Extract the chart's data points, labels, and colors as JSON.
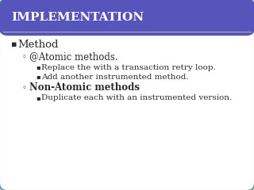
{
  "title": "IMPLEMENTATION",
  "title_bg_color": "#5555bb",
  "title_text_color": "#ffffff",
  "slide_bg_color": "#e8e8e8",
  "content_bg_color": "#ffffff",
  "border_color": "#5599aa",
  "bullet1": "Method",
  "sub1": "@Atomic methods.",
  "sub1a": "Replace the with a transaction retry loop.",
  "sub1b": "Add another instrumented method.",
  "sub2": "Non-Atomic methods",
  "sub2a": "Duplicate each with an instrumented version.",
  "text_color": "#2a2a2a",
  "font_family": "DejaVu Serif",
  "title_fontsize": 11,
  "bullet1_fontsize": 9.5,
  "sub1_fontsize": 8.5,
  "sub2_fontsize": 8.5,
  "subsub_fontsize": 7.5
}
